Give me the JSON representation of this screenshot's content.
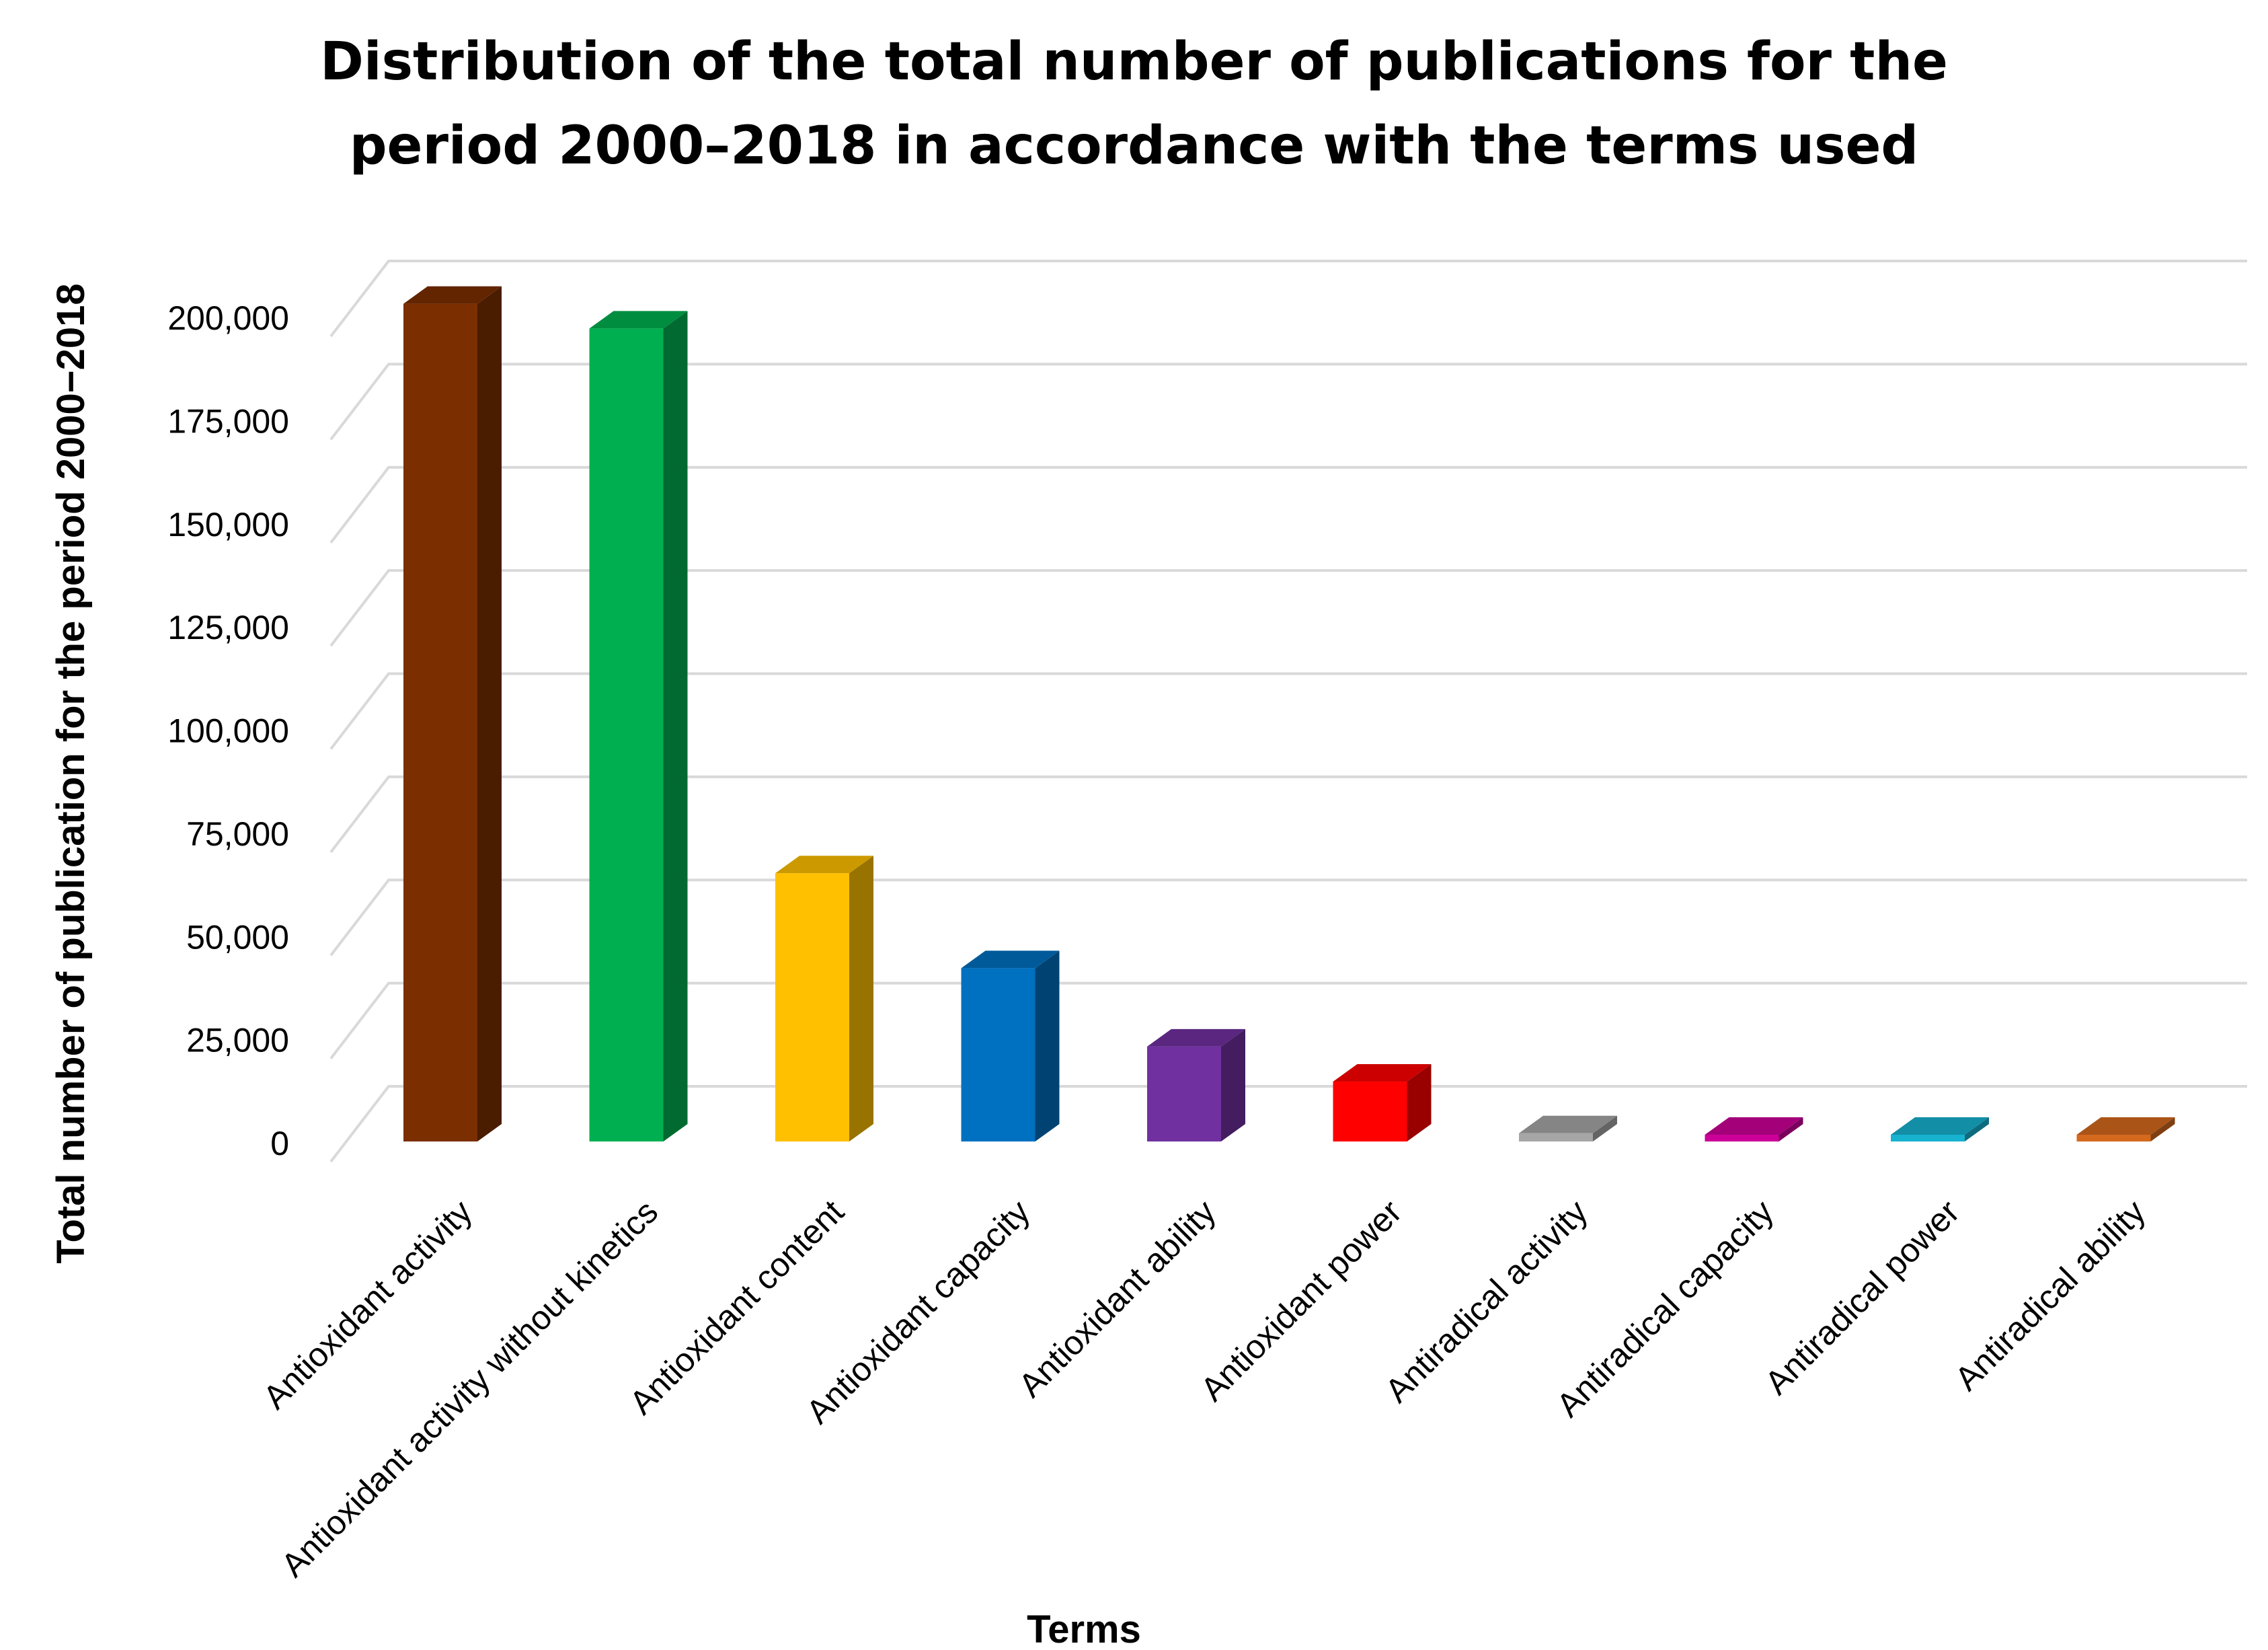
{
  "chart_data": {
    "type": "bar",
    "title": [
      "Distribution of the total number of publications for the",
      "period 2000–2018 in accordance with the terms used"
    ],
    "xlabel": "Terms",
    "ylabel": "Total number of publication  for the period 2000−2018",
    "categories": [
      "Antioxidant activity",
      "Antioxidant activity without kinetics",
      "Antioxidant content",
      "Antioxidant capacity",
      "Antioxidant ability",
      "Antioxidant power",
      "Antiradical activity",
      "Antiradical capacity",
      "Antiradical power",
      "Antiradical ability"
    ],
    "values": [
      203000,
      197000,
      65000,
      42000,
      23000,
      14500,
      2000,
      350,
      300,
      250
    ],
    "colors": [
      "#7B2E00",
      "#00B050",
      "#FFC000",
      "#0070C0",
      "#7030A0",
      "#FF0000",
      "#A6A6A6",
      "#CC0099",
      "#17B2D0",
      "#D4691E"
    ],
    "ylim": [
      0,
      200000
    ],
    "yticks": [
      0,
      25000,
      50000,
      75000,
      100000,
      125000,
      150000,
      175000,
      200000
    ],
    "ytick_labels": [
      "0",
      "25,000",
      "50,000",
      "75,000",
      "100,000",
      "125,000",
      "150,000",
      "175,000",
      "200,000"
    ],
    "grid": true,
    "legend": "none",
    "style": "3d-bar"
  }
}
